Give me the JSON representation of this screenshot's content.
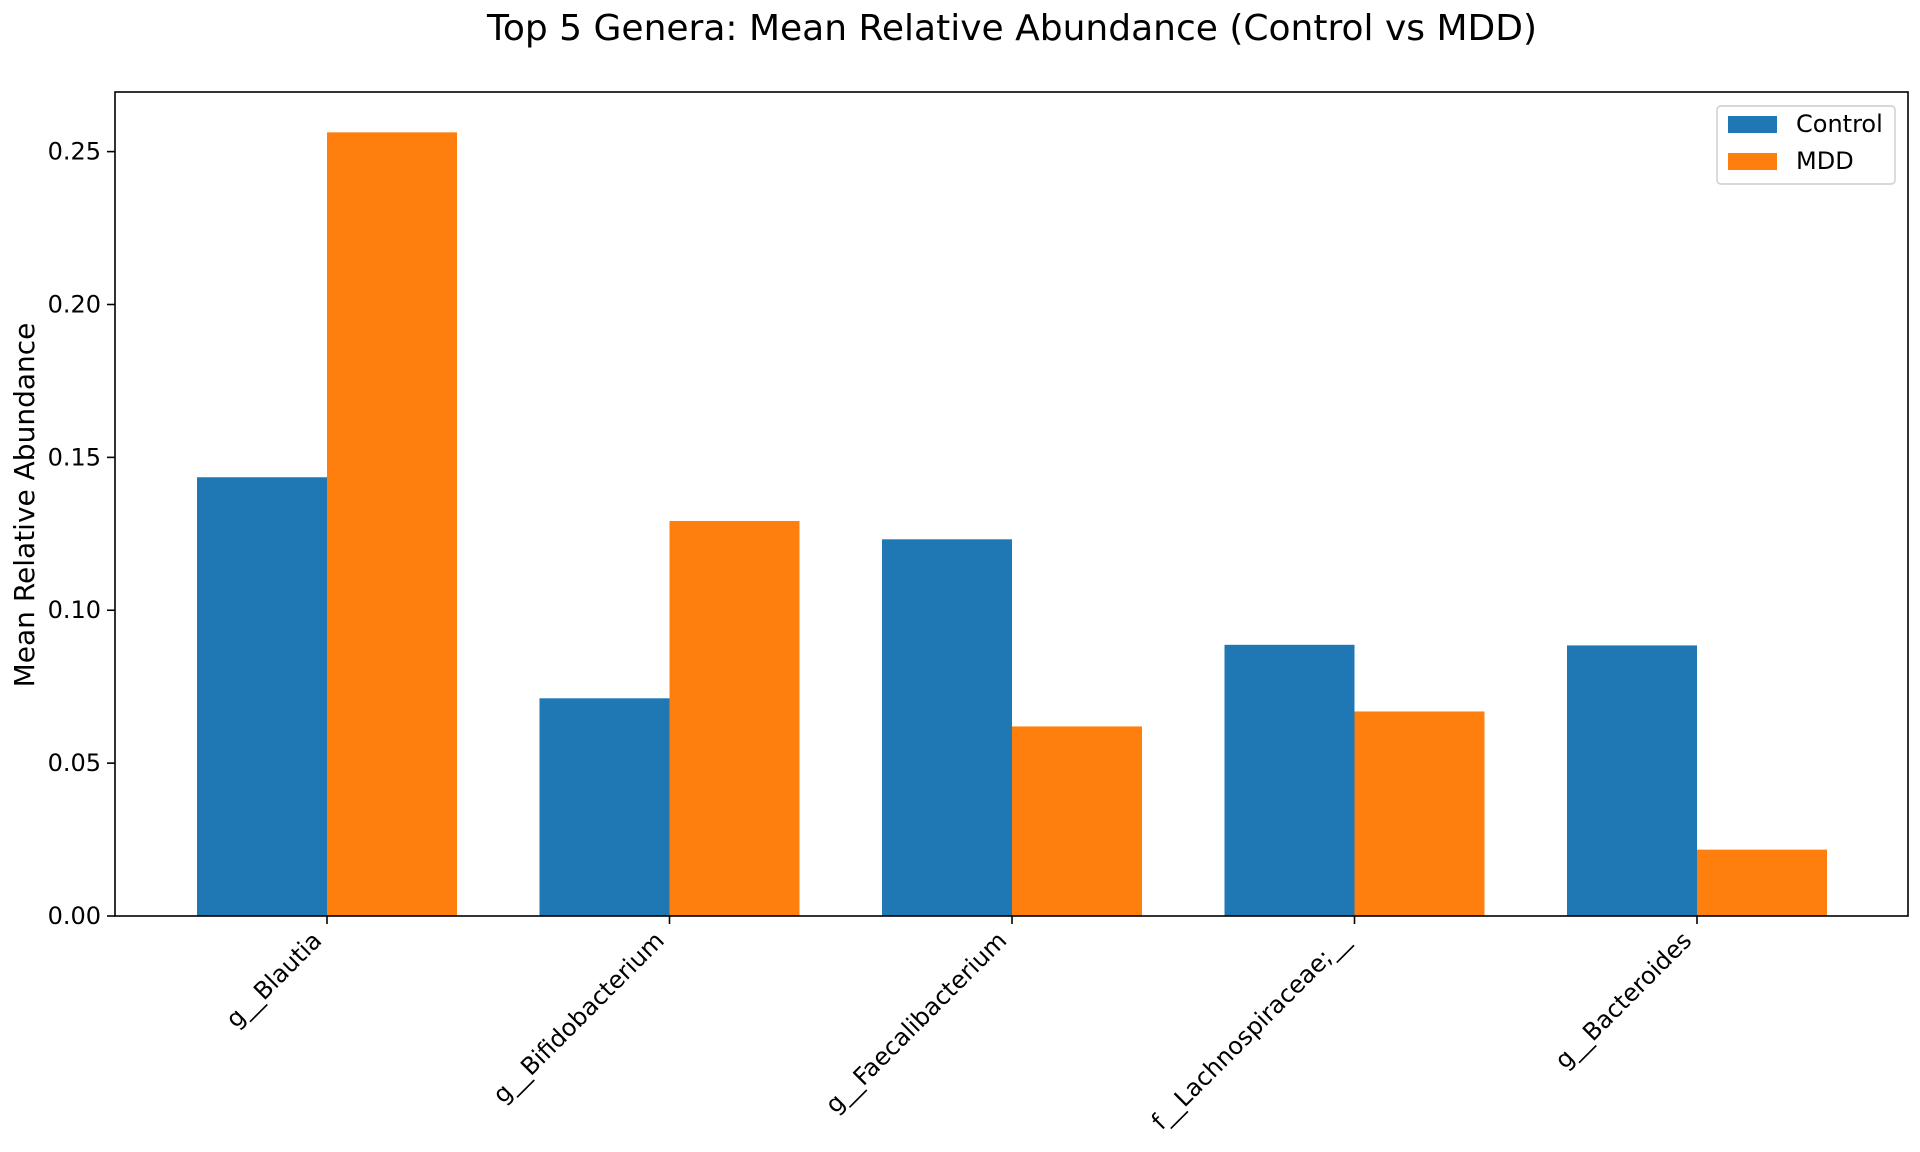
{
  "chart_data": {
    "type": "bar",
    "title": "Top 5 Genera: Mean Relative Abundance (Control vs MDD)",
    "xlabel": "",
    "ylabel": "Mean Relative Abundance",
    "categories": [
      "g__Blautia",
      "g__Bifidobacterium",
      "g__Faecalibacterium",
      "f__Lachnospiraceae;__",
      "g__Bacteroides"
    ],
    "series": [
      {
        "name": "Control",
        "color": "#1f77b4",
        "values": [
          0.1435,
          0.0712,
          0.1232,
          0.0887,
          0.0885
        ]
      },
      {
        "name": "MDD",
        "color": "#ff7f0e",
        "values": [
          0.2563,
          0.1292,
          0.062,
          0.0669,
          0.0217
        ]
      }
    ],
    "ylim": [
      0,
      0.2695
    ],
    "yticks": [
      0.0,
      0.05,
      0.1,
      0.15,
      0.2,
      0.25
    ],
    "ytick_labels": [
      "0.00",
      "0.05",
      "0.10",
      "0.15",
      "0.20",
      "0.25"
    ],
    "grid": false,
    "legend_position": "top-right"
  }
}
